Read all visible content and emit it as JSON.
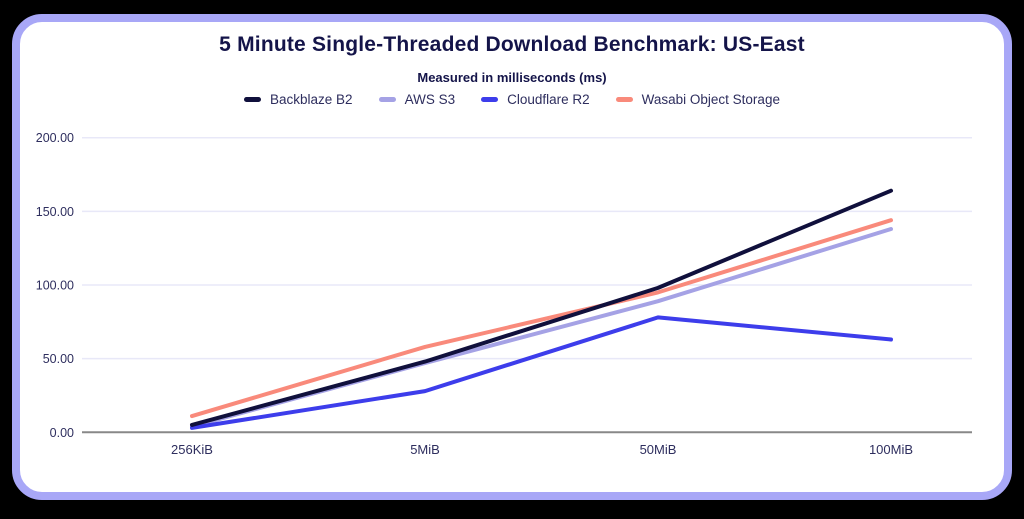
{
  "theme": {
    "background": "#000000",
    "card_background": "#ffffff",
    "card_border": "#a8a7f7",
    "title_color": "#141449",
    "axis_text_color": "#2e2e5e",
    "gridline_color": "#e8e8f8",
    "axis_line_color": "#888888"
  },
  "chart_data": {
    "type": "line",
    "title": "5 Minute Single-Threaded Download Benchmark: US-East",
    "subtitle": "Measured in milliseconds (ms)",
    "unit": "ms",
    "categories": [
      "256KiB",
      "5MiB",
      "50MiB",
      "100MiB"
    ],
    "series": [
      {
        "name": "Backblaze B2",
        "color": "#10103c",
        "values": [
          5,
          48,
          98,
          164
        ]
      },
      {
        "name": "AWS S3",
        "color": "#a5a2e5",
        "values": [
          4,
          47,
          89,
          138
        ]
      },
      {
        "name": "Cloudflare R2",
        "color": "#3d3deb",
        "values": [
          3,
          28,
          78,
          63
        ]
      },
      {
        "name": "Wasabi Object Storage",
        "color": "#f98a7b",
        "values": [
          11,
          58,
          95,
          144
        ]
      }
    ],
    "y_ticks": [
      {
        "value": 0,
        "label": "0.00"
      },
      {
        "value": 50,
        "label": "50.00"
      },
      {
        "value": 100,
        "label": "100.00"
      },
      {
        "value": 150,
        "label": "150.00"
      },
      {
        "value": 200,
        "label": "200.00"
      }
    ],
    "ylim": [
      0,
      200
    ],
    "grid": true,
    "legend_position": "top"
  }
}
